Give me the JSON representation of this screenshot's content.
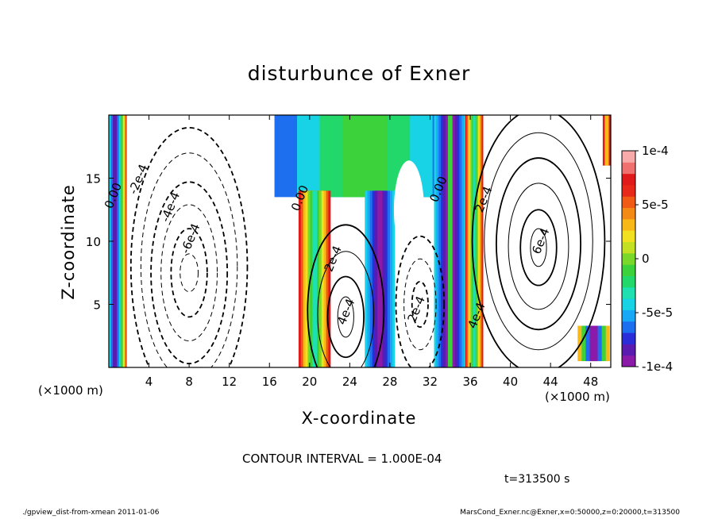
{
  "chart_data": {
    "type": "heatmap",
    "title": "disturbunce of Exner",
    "xlabel": "X-coordinate",
    "ylabel": "Z-coordinate",
    "x_unit": "(×1000 m)",
    "z_unit": "(×1000 m)",
    "xlim": [
      0,
      50
    ],
    "ylim": [
      0,
      20
    ],
    "x_ticks": [
      4,
      8,
      12,
      16,
      20,
      24,
      28,
      32,
      36,
      40,
      44,
      48
    ],
    "y_ticks": [
      5,
      10,
      15
    ],
    "colorbar": {
      "min": -0.0001,
      "max": 0.0001,
      "ticks": [
        {
          "value": 0.0001,
          "label": "1e-4"
        },
        {
          "value": 5e-05,
          "label": "5e-5"
        },
        {
          "value": 0,
          "label": "0"
        },
        {
          "value": -5e-05,
          "label": "-5e-5"
        },
        {
          "value": -0.0001,
          "label": "-1e-4"
        }
      ],
      "colors": [
        "#8b1aa8",
        "#5a1bb0",
        "#2a2dd8",
        "#1e6ef0",
        "#19a8f5",
        "#18d2e6",
        "#1ee0b0",
        "#22d86a",
        "#3cd23c",
        "#7ad82a",
        "#c4e022",
        "#f0e020",
        "#f8b818",
        "#f48a16",
        "#f05a14",
        "#e82818",
        "#e01a1a",
        "#f07070",
        "#f8aaaa"
      ]
    },
    "contour_labels": [
      {
        "text": "0.00",
        "x": 0.8,
        "z": 13.5
      },
      {
        "text": "-2e-4",
        "x": 3.3,
        "z": 14.8
      },
      {
        "text": "-4e-4",
        "x": 6.5,
        "z": 12.6
      },
      {
        "text": "-6e-4",
        "x": 8.5,
        "z": 10.1
      },
      {
        "text": "0.00",
        "x": 19.4,
        "z": 13.3
      },
      {
        "text": "2e-4",
        "x": 22.7,
        "z": 8.5
      },
      {
        "text": "4e-4",
        "x": 24.0,
        "z": 4.3
      },
      {
        "text": "2e-4",
        "x": 31.0,
        "z": 4.5
      },
      {
        "text": "0.00",
        "x": 33.2,
        "z": 14.0
      },
      {
        "text": "2e-4",
        "x": 37.7,
        "z": 13.2
      },
      {
        "text": "6e-4",
        "x": 43.4,
        "z": 9.9
      },
      {
        "text": "4e-4",
        "x": 37.0,
        "z": 4.0
      }
    ],
    "contour_interval": "CONTOUR INTERVAL = 1.000E-04",
    "time": "t=313500 s"
  },
  "footer": {
    "left": "./gpview_dist-from-xmean  2011-01-06",
    "right": "MarsCond_Exner.nc@Exner,x=0:50000,z=0:20000,t=313500"
  }
}
